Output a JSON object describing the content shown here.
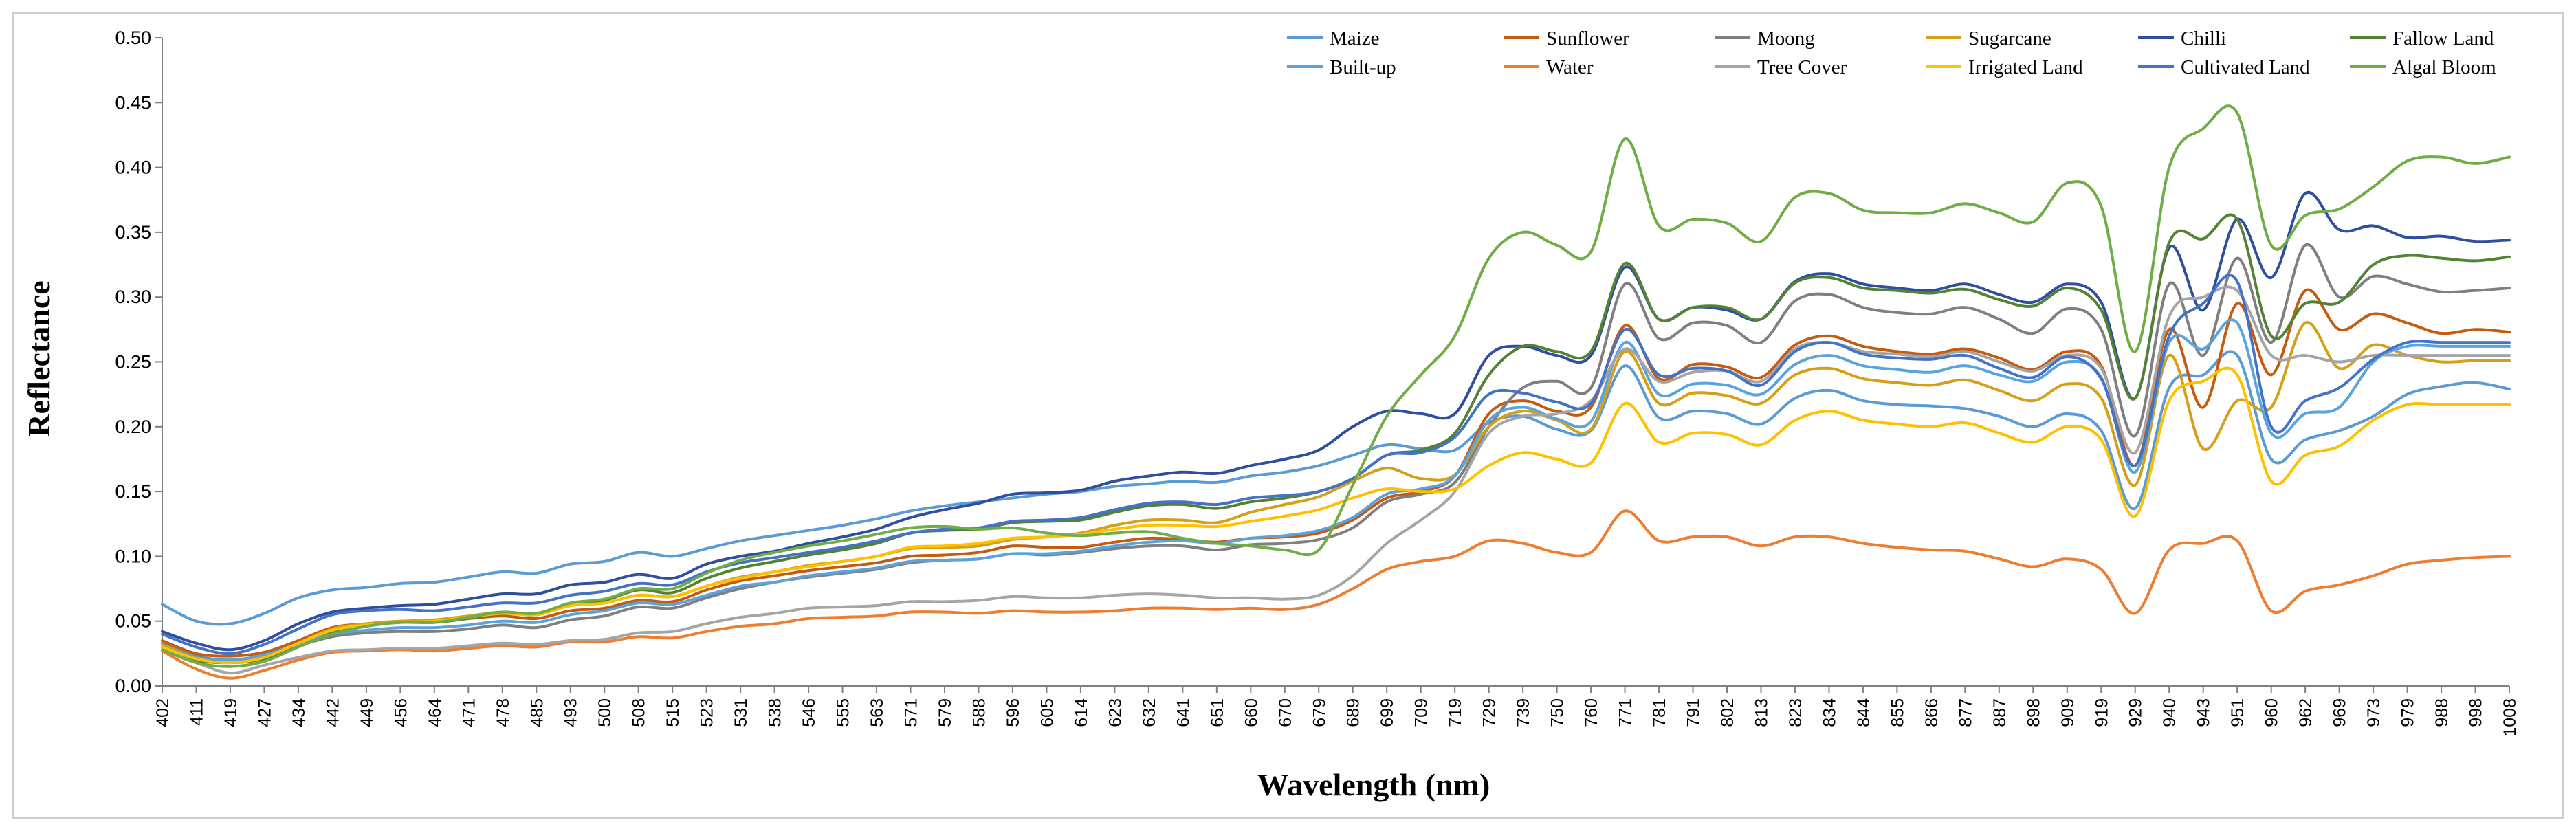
{
  "chart_data": {
    "type": "line",
    "title": "",
    "xlabel": "Wavelength (nm)",
    "ylabel": "Reflectance",
    "ylim": [
      0,
      0.5
    ],
    "yticks": [
      "0.00",
      "0.05",
      "0.10",
      "0.15",
      "0.20",
      "0.25",
      "0.30",
      "0.35",
      "0.40",
      "0.45",
      "0.50"
    ],
    "grid": false,
    "legend_position": "top-right",
    "categories": [
      "402",
      "411",
      "419",
      "427",
      "434",
      "442",
      "449",
      "456",
      "464",
      "471",
      "478",
      "485",
      "493",
      "500",
      "508",
      "515",
      "523",
      "531",
      "538",
      "546",
      "555",
      "563",
      "571",
      "579",
      "588",
      "596",
      "605",
      "614",
      "623",
      "632",
      "641",
      "651",
      "660",
      "670",
      "679",
      "689",
      "699",
      "709",
      "719",
      "729",
      "739",
      "750",
      "760",
      "771",
      "781",
      "791",
      "802",
      "813",
      "823",
      "834",
      "844",
      "855",
      "866",
      "877",
      "887",
      "898",
      "909",
      "919",
      "929",
      "940",
      "943",
      "951",
      "960",
      "962",
      "969",
      "973",
      "979",
      "988",
      "998",
      "1008"
    ],
    "series": [
      {
        "name": "Maize",
        "color": "#5b9bd5",
        "values": [
          0.063,
          0.05,
          0.048,
          0.056,
          0.068,
          0.074,
          0.076,
          0.079,
          0.08,
          0.084,
          0.088,
          0.087,
          0.094,
          0.096,
          0.103,
          0.1,
          0.106,
          0.112,
          0.116,
          0.12,
          0.124,
          0.129,
          0.135,
          0.139,
          0.142,
          0.145,
          0.148,
          0.15,
          0.154,
          0.156,
          0.158,
          0.157,
          0.162,
          0.165,
          0.17,
          0.178,
          0.186,
          0.183,
          0.182,
          0.203,
          0.208,
          0.198,
          0.197,
          0.247,
          0.207,
          0.212,
          0.21,
          0.202,
          0.222,
          0.228,
          0.22,
          0.217,
          0.216,
          0.214,
          0.208,
          0.2,
          0.21,
          0.197,
          0.137,
          0.23,
          0.24,
          0.255,
          0.175,
          0.19,
          0.197,
          0.208,
          0.225,
          0.231,
          0.234,
          0.229
        ]
      },
      {
        "name": "Sunflower",
        "color": "#c55a11",
        "values": [
          0.035,
          0.025,
          0.023,
          0.026,
          0.035,
          0.045,
          0.048,
          0.05,
          0.05,
          0.052,
          0.054,
          0.052,
          0.058,
          0.06,
          0.066,
          0.065,
          0.074,
          0.081,
          0.085,
          0.089,
          0.092,
          0.095,
          0.1,
          0.101,
          0.103,
          0.108,
          0.107,
          0.107,
          0.111,
          0.114,
          0.113,
          0.111,
          0.114,
          0.115,
          0.118,
          0.128,
          0.145,
          0.15,
          0.162,
          0.21,
          0.22,
          0.212,
          0.215,
          0.278,
          0.237,
          0.248,
          0.246,
          0.238,
          0.263,
          0.27,
          0.262,
          0.258,
          0.256,
          0.26,
          0.253,
          0.244,
          0.258,
          0.247,
          0.17,
          0.275,
          0.215,
          0.295,
          0.24,
          0.305,
          0.275,
          0.287,
          0.28,
          0.272,
          0.275,
          0.273
        ]
      },
      {
        "name": "Moong",
        "color": "#7f7f7f",
        "values": [
          0.033,
          0.023,
          0.02,
          0.023,
          0.031,
          0.038,
          0.041,
          0.042,
          0.042,
          0.044,
          0.047,
          0.045,
          0.051,
          0.054,
          0.061,
          0.06,
          0.068,
          0.075,
          0.08,
          0.084,
          0.087,
          0.09,
          0.095,
          0.097,
          0.098,
          0.102,
          0.101,
          0.103,
          0.106,
          0.108,
          0.108,
          0.105,
          0.109,
          0.11,
          0.113,
          0.122,
          0.142,
          0.148,
          0.157,
          0.2,
          0.23,
          0.235,
          0.23,
          0.31,
          0.268,
          0.28,
          0.278,
          0.265,
          0.297,
          0.302,
          0.292,
          0.288,
          0.287,
          0.292,
          0.283,
          0.272,
          0.291,
          0.275,
          0.193,
          0.31,
          0.255,
          0.33,
          0.265,
          0.34,
          0.3,
          0.316,
          0.31,
          0.304,
          0.305,
          0.307
        ]
      },
      {
        "name": "Sugarcane",
        "color": "#d4a017",
        "values": [
          0.032,
          0.022,
          0.019,
          0.022,
          0.033,
          0.044,
          0.048,
          0.05,
          0.051,
          0.054,
          0.057,
          0.055,
          0.062,
          0.064,
          0.07,
          0.069,
          0.077,
          0.084,
          0.088,
          0.093,
          0.096,
          0.1,
          0.106,
          0.107,
          0.108,
          0.113,
          0.115,
          0.118,
          0.124,
          0.128,
          0.128,
          0.126,
          0.134,
          0.14,
          0.146,
          0.158,
          0.168,
          0.16,
          0.163,
          0.2,
          0.212,
          0.205,
          0.198,
          0.258,
          0.218,
          0.226,
          0.224,
          0.218,
          0.24,
          0.245,
          0.237,
          0.234,
          0.232,
          0.236,
          0.228,
          0.22,
          0.233,
          0.222,
          0.155,
          0.255,
          0.183,
          0.22,
          0.215,
          0.28,
          0.245,
          0.263,
          0.255,
          0.25,
          0.251,
          0.251
        ]
      },
      {
        "name": "Chilli",
        "color": "#2f4f9e",
        "values": [
          0.042,
          0.033,
          0.028,
          0.035,
          0.048,
          0.057,
          0.06,
          0.062,
          0.063,
          0.067,
          0.071,
          0.071,
          0.078,
          0.08,
          0.086,
          0.083,
          0.094,
          0.1,
          0.104,
          0.11,
          0.115,
          0.121,
          0.13,
          0.136,
          0.141,
          0.148,
          0.149,
          0.151,
          0.158,
          0.162,
          0.165,
          0.164,
          0.17,
          0.175,
          0.182,
          0.2,
          0.212,
          0.21,
          0.21,
          0.255,
          0.262,
          0.255,
          0.255,
          0.323,
          0.283,
          0.292,
          0.29,
          0.283,
          0.312,
          0.318,
          0.31,
          0.307,
          0.305,
          0.31,
          0.302,
          0.296,
          0.31,
          0.296,
          0.222,
          0.338,
          0.29,
          0.36,
          0.315,
          0.38,
          0.352,
          0.355,
          0.346,
          0.347,
          0.343,
          0.344
        ]
      },
      {
        "name": "Fallow Land",
        "color": "#548235",
        "values": [
          0.03,
          0.02,
          0.018,
          0.021,
          0.032,
          0.042,
          0.047,
          0.049,
          0.049,
          0.052,
          0.056,
          0.055,
          0.063,
          0.066,
          0.074,
          0.072,
          0.083,
          0.091,
          0.096,
          0.101,
          0.105,
          0.11,
          0.118,
          0.12,
          0.121,
          0.126,
          0.127,
          0.128,
          0.134,
          0.139,
          0.14,
          0.137,
          0.142,
          0.145,
          0.15,
          0.16,
          0.178,
          0.182,
          0.195,
          0.24,
          0.262,
          0.258,
          0.258,
          0.326,
          0.283,
          0.292,
          0.292,
          0.283,
          0.311,
          0.315,
          0.307,
          0.305,
          0.303,
          0.306,
          0.298,
          0.293,
          0.307,
          0.29,
          0.222,
          0.342,
          0.345,
          0.36,
          0.27,
          0.295,
          0.296,
          0.325,
          0.332,
          0.33,
          0.328,
          0.331
        ]
      },
      {
        "name": "Built-up",
        "color": "#5ba3dc",
        "values": [
          0.03,
          0.022,
          0.02,
          0.024,
          0.032,
          0.04,
          0.043,
          0.045,
          0.045,
          0.047,
          0.05,
          0.049,
          0.055,
          0.058,
          0.064,
          0.063,
          0.07,
          0.077,
          0.08,
          0.085,
          0.088,
          0.091,
          0.096,
          0.097,
          0.098,
          0.102,
          0.102,
          0.104,
          0.108,
          0.111,
          0.112,
          0.11,
          0.114,
          0.116,
          0.12,
          0.13,
          0.148,
          0.152,
          0.162,
          0.205,
          0.215,
          0.206,
          0.204,
          0.265,
          0.225,
          0.233,
          0.232,
          0.225,
          0.248,
          0.255,
          0.247,
          0.244,
          0.242,
          0.247,
          0.24,
          0.235,
          0.25,
          0.238,
          0.165,
          0.265,
          0.26,
          0.28,
          0.195,
          0.21,
          0.215,
          0.25,
          0.262,
          0.262,
          0.262,
          0.262
        ]
      },
      {
        "name": "Water",
        "color": "#ed7d31",
        "values": [
          0.027,
          0.013,
          0.006,
          0.012,
          0.02,
          0.026,
          0.027,
          0.028,
          0.027,
          0.029,
          0.031,
          0.03,
          0.034,
          0.034,
          0.038,
          0.037,
          0.042,
          0.046,
          0.048,
          0.052,
          0.053,
          0.054,
          0.057,
          0.057,
          0.056,
          0.058,
          0.057,
          0.057,
          0.058,
          0.06,
          0.06,
          0.059,
          0.06,
          0.059,
          0.063,
          0.075,
          0.09,
          0.096,
          0.1,
          0.112,
          0.11,
          0.103,
          0.103,
          0.135,
          0.112,
          0.115,
          0.115,
          0.108,
          0.115,
          0.115,
          0.11,
          0.107,
          0.105,
          0.104,
          0.098,
          0.092,
          0.098,
          0.09,
          0.056,
          0.105,
          0.11,
          0.112,
          0.058,
          0.073,
          0.078,
          0.085,
          0.094,
          0.097,
          0.099,
          0.1
        ]
      },
      {
        "name": "Tree Cover",
        "color": "#a5a5a5",
        "values": [
          0.028,
          0.018,
          0.01,
          0.016,
          0.022,
          0.027,
          0.028,
          0.029,
          0.029,
          0.031,
          0.033,
          0.032,
          0.035,
          0.036,
          0.041,
          0.042,
          0.048,
          0.053,
          0.056,
          0.06,
          0.061,
          0.062,
          0.065,
          0.065,
          0.066,
          0.069,
          0.068,
          0.068,
          0.07,
          0.071,
          0.07,
          0.068,
          0.068,
          0.067,
          0.07,
          0.085,
          0.11,
          0.128,
          0.15,
          0.195,
          0.208,
          0.21,
          0.22,
          0.26,
          0.235,
          0.242,
          0.243,
          0.235,
          0.26,
          0.265,
          0.258,
          0.256,
          0.254,
          0.258,
          0.25,
          0.243,
          0.255,
          0.245,
          0.18,
          0.285,
          0.3,
          0.305,
          0.255,
          0.255,
          0.25,
          0.255,
          0.255,
          0.255,
          0.255,
          0.255
        ]
      },
      {
        "name": "Irrigated Land",
        "color": "#ffc000",
        "values": [
          0.03,
          0.021,
          0.018,
          0.022,
          0.033,
          0.043,
          0.047,
          0.049,
          0.05,
          0.053,
          0.056,
          0.055,
          0.062,
          0.064,
          0.07,
          0.069,
          0.077,
          0.083,
          0.088,
          0.092,
          0.096,
          0.1,
          0.107,
          0.108,
          0.11,
          0.114,
          0.115,
          0.117,
          0.121,
          0.124,
          0.124,
          0.123,
          0.127,
          0.131,
          0.136,
          0.145,
          0.152,
          0.15,
          0.152,
          0.17,
          0.18,
          0.175,
          0.172,
          0.218,
          0.188,
          0.195,
          0.194,
          0.186,
          0.205,
          0.212,
          0.205,
          0.202,
          0.2,
          0.203,
          0.195,
          0.188,
          0.2,
          0.19,
          0.131,
          0.22,
          0.235,
          0.24,
          0.158,
          0.178,
          0.185,
          0.205,
          0.217,
          0.217,
          0.217,
          0.217
        ]
      },
      {
        "name": "Cultivated Land",
        "color": "#4472c4",
        "values": [
          0.04,
          0.03,
          0.025,
          0.032,
          0.044,
          0.055,
          0.058,
          0.059,
          0.058,
          0.061,
          0.064,
          0.064,
          0.07,
          0.073,
          0.079,
          0.078,
          0.088,
          0.095,
          0.099,
          0.103,
          0.107,
          0.112,
          0.118,
          0.121,
          0.122,
          0.127,
          0.128,
          0.13,
          0.136,
          0.141,
          0.142,
          0.14,
          0.145,
          0.147,
          0.15,
          0.16,
          0.178,
          0.18,
          0.192,
          0.225,
          0.226,
          0.219,
          0.218,
          0.275,
          0.24,
          0.245,
          0.243,
          0.232,
          0.258,
          0.265,
          0.256,
          0.253,
          0.252,
          0.255,
          0.245,
          0.238,
          0.254,
          0.237,
          0.17,
          0.27,
          0.295,
          0.312,
          0.2,
          0.22,
          0.23,
          0.252,
          0.265,
          0.265,
          0.265,
          0.265
        ]
      },
      {
        "name": "Algal Bloom",
        "color": "#70ad47",
        "values": [
          0.028,
          0.018,
          0.015,
          0.019,
          0.03,
          0.04,
          0.046,
          0.049,
          0.049,
          0.053,
          0.057,
          0.056,
          0.064,
          0.067,
          0.075,
          0.075,
          0.087,
          0.097,
          0.103,
          0.108,
          0.112,
          0.117,
          0.122,
          0.123,
          0.121,
          0.122,
          0.118,
          0.116,
          0.118,
          0.119,
          0.114,
          0.11,
          0.108,
          0.105,
          0.105,
          0.155,
          0.208,
          0.24,
          0.27,
          0.33,
          0.35,
          0.34,
          0.335,
          0.422,
          0.355,
          0.36,
          0.357,
          0.343,
          0.377,
          0.38,
          0.367,
          0.365,
          0.365,
          0.372,
          0.365,
          0.358,
          0.388,
          0.37,
          0.258,
          0.4,
          0.43,
          0.442,
          0.34,
          0.363,
          0.368,
          0.385,
          0.405,
          0.408,
          0.403,
          0.408
        ]
      }
    ]
  }
}
